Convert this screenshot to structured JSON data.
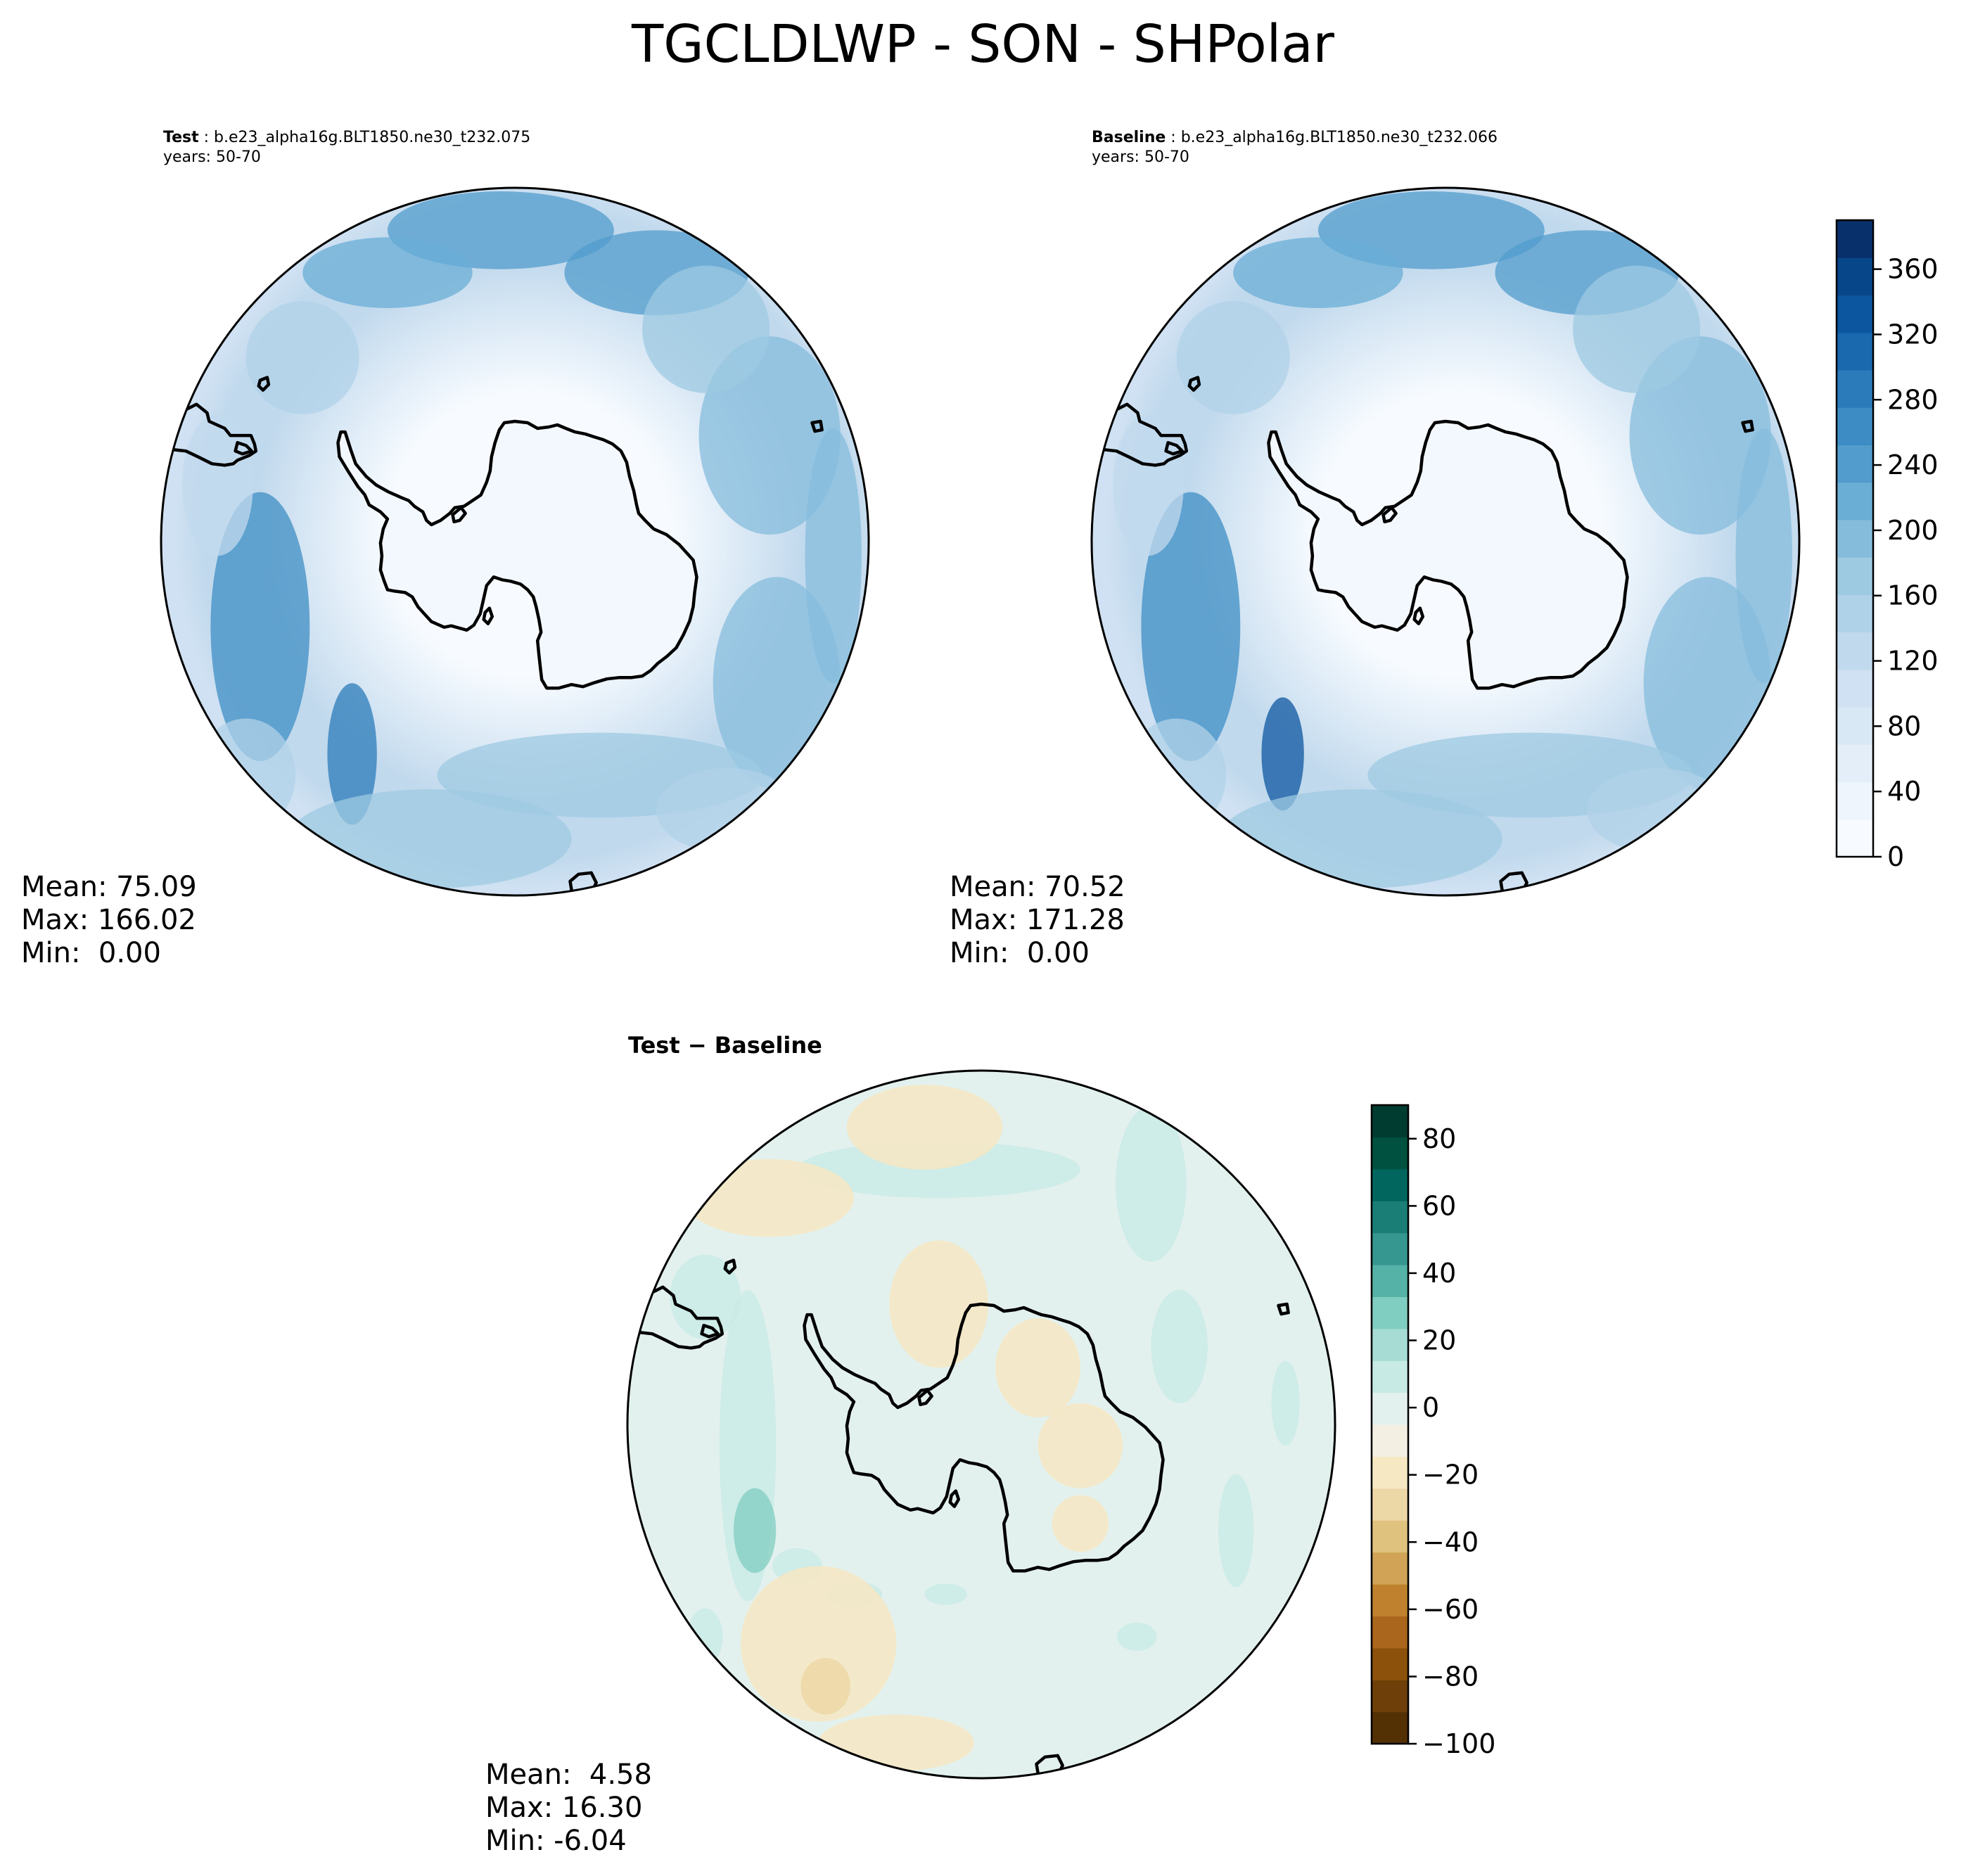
{
  "figure": {
    "title": "TGCLDLWP - SON - SHPolar"
  },
  "panels": {
    "test": {
      "label": "Test",
      "case": "b.e23_alpha16g.BLT1850.ne30_t232.075",
      "years": "years: 50-70",
      "stats": {
        "mean": "Mean: 75.09",
        "max": "Max: 166.02",
        "min": "Min:  0.00"
      }
    },
    "baseline": {
      "label": "Baseline",
      "case": "b.e23_alpha16g.BLT1850.ne30_t232.066",
      "years": "years: 50-70",
      "stats": {
        "mean": "Mean: 70.52",
        "max": "Max: 171.28",
        "min": "Min:  0.00"
      }
    },
    "diff": {
      "label": "Test − Baseline",
      "stats": {
        "mean": "Mean:  4.58",
        "max": "Max: 16.30",
        "min": "Min: -6.04"
      }
    }
  },
  "chart_data": [
    {
      "type": "heatmap",
      "projection": "south-polar-stereographic",
      "title": "Test : b.e23_alpha16g.BLT1850.ne30_t232.075",
      "subtitle": "years: 50-70",
      "stats": {
        "mean": 75.09,
        "max": 166.02,
        "min": 0.0
      },
      "colormap": "Blues",
      "colorbar": {
        "range": [
          0,
          390
        ],
        "ticks": [
          0,
          40,
          80,
          120,
          160,
          200,
          240,
          280,
          320,
          360
        ],
        "location": "right"
      }
    },
    {
      "type": "heatmap",
      "projection": "south-polar-stereographic",
      "title": "Baseline : b.e23_alpha16g.BLT1850.ne30_t232.066",
      "subtitle": "years: 50-70",
      "stats": {
        "mean": 70.52,
        "max": 171.28,
        "min": 0.0
      },
      "colormap": "Blues",
      "colorbar": {
        "range": [
          0,
          390
        ],
        "ticks": [
          0,
          40,
          80,
          120,
          160,
          200,
          240,
          280,
          320,
          360
        ],
        "location": "right"
      }
    },
    {
      "type": "heatmap",
      "projection": "south-polar-stereographic",
      "title": "Test − Baseline",
      "stats": {
        "mean": 4.58,
        "max": 16.3,
        "min": -6.04
      },
      "colormap": "BrBG",
      "colorbar": {
        "range": [
          -100,
          90
        ],
        "ticks": [
          -100,
          -80,
          -60,
          -40,
          -20,
          0,
          20,
          40,
          60,
          80
        ],
        "tick_labels": [
          "−100",
          "−80",
          "−60",
          "−40",
          "−20",
          "0",
          "20",
          "40",
          "60",
          "80"
        ],
        "location": "right"
      }
    }
  ],
  "colors": {
    "blues": [
      "#f7fbff",
      "#eef5fc",
      "#e3eef9",
      "#d9e8f5",
      "#cfe1f2",
      "#c1d9ed",
      "#b0d2e8",
      "#9ecae1",
      "#85bcdc",
      "#6aaed6",
      "#519ccc",
      "#3d8dc4",
      "#2b7bba",
      "#1a68ae",
      "#0c56a0",
      "#08468a",
      "#08306b"
    ],
    "brbg": [
      "#543005",
      "#6f3f09",
      "#8c510a",
      "#a9661c",
      "#bf812d",
      "#d0a356",
      "#dfc27d",
      "#ecd7a6",
      "#f6e8c3",
      "#f3efe2",
      "#e3f1ee",
      "#c7eae5",
      "#a6dcd4",
      "#80cdc1",
      "#54b2a6",
      "#35978f",
      "#1b7e76",
      "#01665e",
      "#00513f",
      "#003c30"
    ],
    "land": "#f3f8fe",
    "coast": "#000000"
  }
}
